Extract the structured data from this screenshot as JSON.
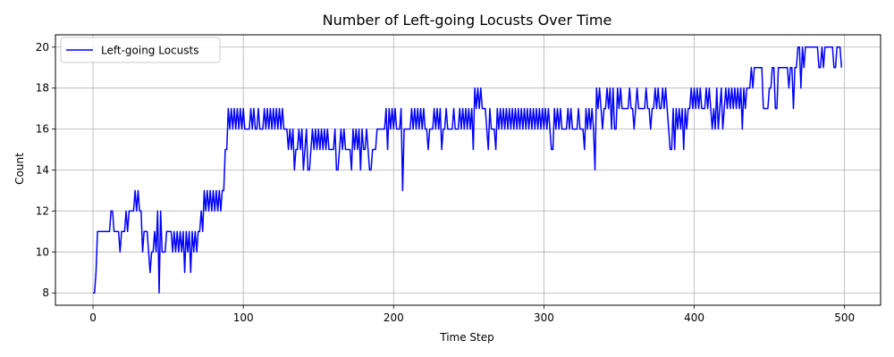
{
  "chart_data": {
    "type": "line",
    "title": "Number of Left-going Locusts Over Time",
    "xlabel": "Time Step",
    "ylabel": "Count",
    "xlim": [
      -25,
      524
    ],
    "ylim": [
      7.4,
      20.6
    ],
    "xticks": [
      "0",
      "100",
      "200",
      "300",
      "400",
      "500"
    ],
    "xtick_values": [
      0,
      100,
      200,
      300,
      400,
      500
    ],
    "yticks": [
      "8",
      "10",
      "12",
      "14",
      "16",
      "18",
      "20"
    ],
    "ytick_values": [
      8,
      10,
      12,
      14,
      16,
      18,
      20
    ],
    "grid": true,
    "legend_position": "upper left",
    "series": [
      {
        "name": "Left-going Locusts",
        "color": "#0000ff",
        "y": [
          8,
          8,
          9,
          11,
          11,
          11,
          11,
          11,
          11,
          11,
          11,
          11,
          12,
          12,
          11,
          11,
          11,
          11,
          10,
          11,
          11,
          11,
          12,
          11,
          12,
          12,
          12,
          12,
          13,
          12,
          13,
          12,
          12,
          10,
          11,
          11,
          11,
          10,
          9,
          10,
          10,
          11,
          10,
          12,
          8,
          12,
          10,
          10,
          10,
          11,
          11,
          11,
          11,
          10,
          11,
          10,
          11,
          10,
          11,
          10,
          11,
          9,
          11,
          10,
          11,
          9,
          11,
          10,
          11,
          10,
          11,
          11,
          12,
          11,
          13,
          12,
          13,
          12,
          13,
          12,
          13,
          12,
          13,
          12,
          13,
          12,
          13,
          13,
          15,
          15,
          17,
          16,
          17,
          16,
          17,
          16,
          17,
          16,
          17,
          16,
          17,
          16,
          16,
          16,
          16,
          17,
          16,
          17,
          16,
          16,
          17,
          16,
          16,
          16,
          17,
          16,
          17,
          16,
          17,
          16,
          17,
          16,
          17,
          16,
          17,
          16,
          17,
          16,
          16,
          16,
          15,
          16,
          15,
          16,
          14,
          15,
          15,
          16,
          15,
          16,
          14,
          15,
          16,
          14,
          14,
          15,
          16,
          15,
          16,
          15,
          16,
          15,
          16,
          15,
          16,
          15,
          16,
          15,
          15,
          15,
          15,
          16,
          14,
          14,
          15,
          16,
          15,
          16,
          15,
          15,
          15,
          15,
          14,
          16,
          15,
          16,
          15,
          16,
          14,
          16,
          15,
          15,
          16,
          15,
          14,
          14,
          15,
          15,
          15,
          16,
          16,
          16,
          16,
          16,
          16,
          17,
          15,
          17,
          16,
          17,
          16,
          17,
          16,
          16,
          16,
          17,
          13,
          16,
          16,
          16,
          16,
          16,
          17,
          16,
          17,
          16,
          17,
          16,
          17,
          16,
          17,
          16,
          16,
          15,
          16,
          16,
          16,
          17,
          16,
          17,
          16,
          17,
          15,
          16,
          16,
          17,
          16,
          16,
          16,
          16,
          17,
          16,
          16,
          16,
          17,
          16,
          17,
          16,
          17,
          16,
          17,
          16,
          17,
          15,
          18,
          17,
          18,
          17,
          18,
          17,
          17,
          17,
          16,
          15,
          17,
          16,
          16,
          16,
          15,
          17,
          16,
          17,
          16,
          17,
          16,
          17,
          16,
          17,
          16,
          17,
          16,
          17,
          16,
          17,
          16,
          17,
          16,
          17,
          16,
          17,
          16,
          17,
          16,
          17,
          16,
          17,
          16,
          17,
          16,
          17,
          16,
          17,
          16,
          17,
          16,
          15,
          15,
          17,
          16,
          17,
          16,
          17,
          16,
          16,
          16,
          16,
          17,
          16,
          17,
          16,
          16,
          16,
          16,
          17,
          16,
          16,
          16,
          15,
          17,
          16,
          17,
          16,
          17,
          16,
          14,
          18,
          17,
          18,
          17,
          16,
          17,
          17,
          18,
          17,
          18,
          16,
          18,
          16,
          16,
          18,
          17,
          18,
          17,
          17,
          17,
          17,
          17,
          18,
          17,
          17,
          16,
          17,
          18,
          17,
          17,
          17,
          17,
          17,
          18,
          17,
          17,
          16,
          17,
          17,
          18,
          17,
          18,
          17,
          17,
          18,
          17,
          18,
          17,
          16,
          15,
          15,
          17,
          15,
          17,
          16,
          17,
          16,
          17,
          15,
          17,
          16,
          17,
          17,
          18,
          17,
          18,
          17,
          18,
          17,
          18,
          17,
          17,
          17,
          18,
          17,
          18,
          17,
          16,
          17,
          16,
          18,
          16,
          17,
          18,
          16,
          17,
          18,
          17,
          18,
          17,
          18,
          17,
          18,
          17,
          18,
          17,
          18,
          16,
          18,
          17,
          18,
          18,
          18,
          19,
          18,
          19,
          19,
          19,
          19,
          19,
          19,
          17,
          17,
          17,
          17,
          18,
          18,
          19,
          19,
          17,
          17,
          19,
          19,
          19,
          19,
          19,
          19,
          19,
          18,
          19,
          19,
          17,
          19,
          19,
          20,
          20,
          18,
          20,
          19,
          20,
          20,
          20,
          20,
          20,
          20,
          20,
          20,
          20,
          19,
          19,
          20,
          19,
          20,
          20,
          20,
          20,
          20,
          20,
          19,
          19,
          20,
          20,
          20,
          19
        ]
      }
    ]
  }
}
